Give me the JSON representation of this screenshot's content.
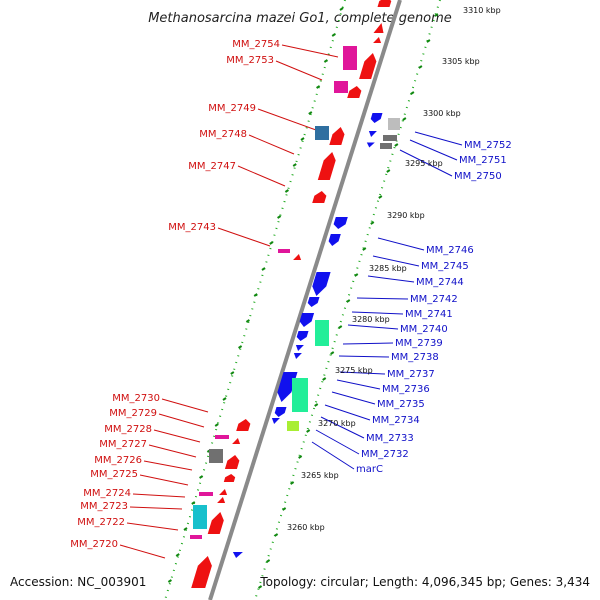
{
  "title": "Methanosarcina mazei Go1, complete genome",
  "accession": "Accession: NC_003901",
  "topology": "Topology: circular; Length: 4,096,345 bp; Genes: 3,434",
  "colors": {
    "backbone": "#888888",
    "forward_genes": "#ee1111",
    "reverse_genes": "#1111ee",
    "tick_left": "#118811",
    "tick_right": "#118811",
    "label_forward": "#d01010",
    "label_reverse": "#1010c8"
  },
  "kbp_labels": [
    "3310 kbp",
    "3305 kbp",
    "3300 kbp",
    "3295 kbp",
    "3290 kbp",
    "3285 kbp",
    "3280 kbp",
    "3275 kbp",
    "3270 kbp",
    "3265 kbp",
    "3260 kbp"
  ],
  "forward_labels": [
    "MM_2754",
    "MM_2753",
    "MM_2749",
    "MM_2748",
    "MM_2747",
    "MM_2743",
    "MM_2730",
    "MM_2729",
    "MM_2728",
    "MM_2727",
    "MM_2726",
    "MM_2725",
    "MM_2724",
    "MM_2723",
    "MM_2722",
    "MM_2720"
  ],
  "reverse_labels": [
    "MM_2752",
    "MM_2751",
    "MM_2750",
    "MM_2746",
    "MM_2745",
    "MM_2744",
    "MM_2742",
    "MM_2741",
    "MM_2740",
    "MM_2739",
    "MM_2738",
    "MM_2737",
    "MM_2736",
    "MM_2735",
    "MM_2734",
    "MM_2733",
    "MM_2732",
    "marC"
  ]
}
